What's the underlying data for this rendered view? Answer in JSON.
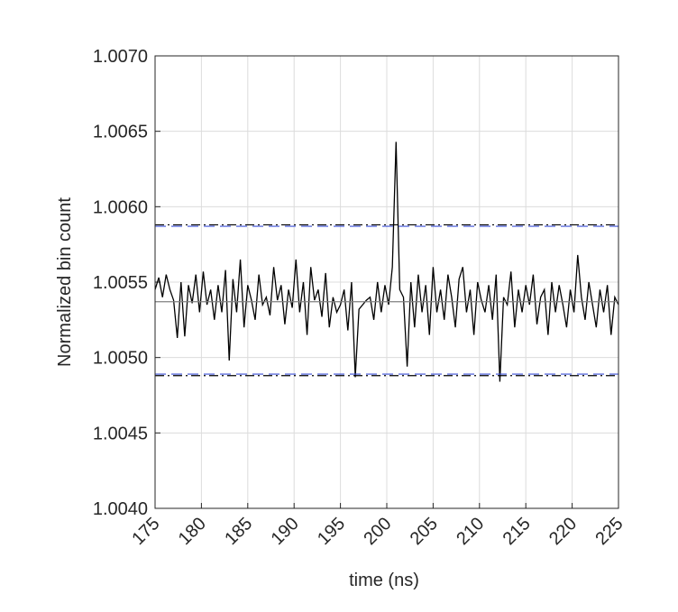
{
  "chart_data": {
    "type": "line",
    "xlabel": "time (ns)",
    "ylabel": "Normalized bin count",
    "xlim": [
      175,
      225
    ],
    "xticks": [
      175,
      180,
      185,
      190,
      195,
      200,
      205,
      210,
      215,
      220,
      225
    ],
    "ylim": [
      1.004,
      1.007
    ],
    "yticks": [
      {
        "value": 1.004,
        "label": "1.0040"
      },
      1.0045,
      {
        "value": 1.005,
        "label": "1.0050"
      },
      1.0055,
      {
        "value": 1.006,
        "label": "1.0060"
      },
      1.0065,
      {
        "value": 1.007,
        "label": "1.0070"
      }
    ],
    "grid": true,
    "series": [
      {
        "color": "#000000",
        "dash": "solid",
        "x": [
          175,
          175.4,
          175.8,
          176.2,
          176.6,
          177,
          177.4,
          177.8,
          178.2,
          178.6,
          179,
          179.4,
          179.8,
          180.2,
          180.6,
          181,
          181.4,
          181.8,
          182.2,
          182.6,
          183,
          183.4,
          183.8,
          184.2,
          184.6,
          185,
          185.4,
          185.8,
          186.2,
          186.6,
          187,
          187.4,
          187.8,
          188.2,
          188.6,
          189,
          189.4,
          189.8,
          190.2,
          190.6,
          191,
          191.4,
          191.8,
          192.2,
          192.6,
          193,
          193.4,
          193.8,
          194.2,
          194.6,
          195,
          195.4,
          195.8,
          196.2,
          196.6,
          197,
          197.4,
          197.8,
          198.2,
          198.6,
          199,
          199.4,
          199.8,
          200.2,
          200.6,
          201,
          201.4,
          201.8,
          202.2,
          202.6,
          203,
          203.4,
          203.8,
          204.2,
          204.6,
          205,
          205.4,
          205.8,
          206.2,
          206.6,
          207,
          207.4,
          207.8,
          208.2,
          208.6,
          209,
          209.4,
          209.8,
          210.2,
          210.6,
          211,
          211.4,
          211.8,
          212.2,
          212.6,
          213,
          213.4,
          213.8,
          214.2,
          214.6,
          215,
          215.4,
          215.8,
          216.2,
          216.6,
          217,
          217.4,
          217.8,
          218.2,
          218.6,
          219,
          219.4,
          219.8,
          220.2,
          220.6,
          221,
          221.4,
          221.8,
          222.2,
          222.6,
          223,
          223.4,
          223.8,
          224.2,
          224.6,
          225
        ],
        "values": [
          1.00545,
          1.00553,
          1.0054,
          1.00555,
          1.00545,
          1.00538,
          1.00513,
          1.0055,
          1.00514,
          1.00548,
          1.00536,
          1.00555,
          1.0053,
          1.00557,
          1.00535,
          1.00545,
          1.00525,
          1.00548,
          1.0053,
          1.00558,
          1.00498,
          1.00552,
          1.0053,
          1.00565,
          1.0052,
          1.00548,
          1.00538,
          1.00525,
          1.00555,
          1.00535,
          1.0054,
          1.00528,
          1.0056,
          1.00538,
          1.00548,
          1.00522,
          1.00545,
          1.00533,
          1.00565,
          1.0053,
          1.0055,
          1.00515,
          1.0056,
          1.00538,
          1.00545,
          1.00527,
          1.00556,
          1.0052,
          1.0054,
          1.0053,
          1.00535,
          1.00545,
          1.00518,
          1.0055,
          1.00487,
          1.00532,
          1.00535,
          1.00538,
          1.0054,
          1.00525,
          1.0055,
          1.0053,
          1.00548,
          1.00535,
          1.0056,
          1.00643,
          1.00545,
          1.0054,
          1.00494,
          1.0055,
          1.0052,
          1.00555,
          1.0053,
          1.00548,
          1.00515,
          1.0056,
          1.0053,
          1.00545,
          1.00525,
          1.00555,
          1.0054,
          1.0052,
          1.00552,
          1.0056,
          1.0053,
          1.00545,
          1.00515,
          1.0055,
          1.00538,
          1.0053,
          1.00548,
          1.00525,
          1.00555,
          1.00484,
          1.0054,
          1.00535,
          1.00557,
          1.0052,
          1.00545,
          1.0053,
          1.00548,
          1.00535,
          1.00555,
          1.00522,
          1.0054,
          1.00545,
          1.00515,
          1.0055,
          1.0053,
          1.00548,
          1.00535,
          1.0052,
          1.00545,
          1.0053,
          1.00568,
          1.0054,
          1.00525,
          1.0055,
          1.00535,
          1.0052,
          1.00545,
          1.0053,
          1.00548,
          1.00515,
          1.0054,
          1.00535
        ]
      },
      {
        "color": "#808080",
        "dash": "solid",
        "x": [
          175,
          225
        ],
        "values": [
          1.00537,
          1.00537
        ]
      },
      {
        "color": "#000000",
        "dash": "dashdot",
        "x": [
          175,
          225
        ],
        "values": [
          1.00588,
          1.00588
        ]
      },
      {
        "color": "#000000",
        "dash": "dashdot",
        "x": [
          175,
          225
        ],
        "values": [
          1.00488,
          1.00488
        ]
      },
      {
        "color": "#3b4fd6",
        "dash": "dash",
        "x": [
          175,
          225
        ],
        "values": [
          1.00587,
          1.00587
        ]
      },
      {
        "color": "#3b4fd6",
        "dash": "dash",
        "x": [
          175,
          225
        ],
        "values": [
          1.00489,
          1.00489
        ]
      }
    ]
  }
}
